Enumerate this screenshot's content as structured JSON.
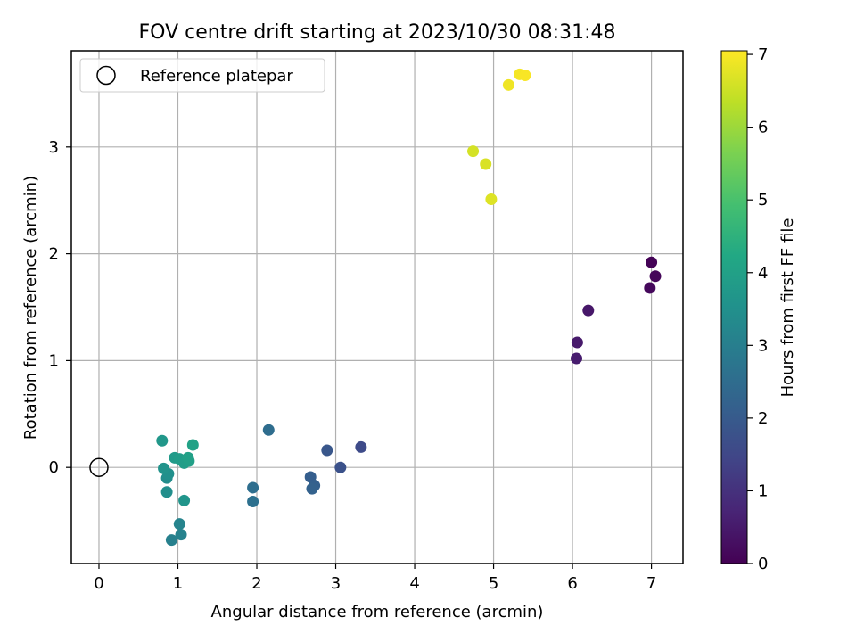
{
  "chart_data": {
    "type": "scatter",
    "title": "FOV centre drift starting at 2023/10/30 08:31:48",
    "xlabel": "Angular distance from reference (arcmin)",
    "ylabel": "Rotation from reference (arcmin)",
    "xlim": [
      -0.35,
      7.4
    ],
    "ylim": [
      -0.9,
      3.9
    ],
    "xticks": [
      0,
      1,
      2,
      3,
      4,
      5,
      6,
      7
    ],
    "yticks": [
      0,
      1,
      2,
      3
    ],
    "grid": true,
    "legend": {
      "placement": "top-left",
      "entries": [
        "Reference platepar"
      ]
    },
    "reference_point": {
      "label": "Reference platepar",
      "x": 0,
      "y": 0,
      "marker": "open-circle"
    },
    "colorbar": {
      "label": "Hours from first FF file",
      "colormap": "viridis",
      "range": [
        0,
        7.05
      ],
      "ticks": [
        0,
        1,
        2,
        3,
        4,
        5,
        6,
        7
      ]
    },
    "points": [
      {
        "x": 7.0,
        "y": 1.92,
        "hours": 0.05
      },
      {
        "x": 7.05,
        "y": 1.79,
        "hours": 0.1
      },
      {
        "x": 6.98,
        "y": 1.68,
        "hours": 0.15
      },
      {
        "x": 6.2,
        "y": 1.47,
        "hours": 0.45
      },
      {
        "x": 6.06,
        "y": 1.17,
        "hours": 0.5
      },
      {
        "x": 6.05,
        "y": 1.02,
        "hours": 0.55
      },
      {
        "x": 3.32,
        "y": 0.19,
        "hours": 1.6
      },
      {
        "x": 3.06,
        "y": 0.0,
        "hours": 1.75
      },
      {
        "x": 2.89,
        "y": 0.16,
        "hours": 1.9
      },
      {
        "x": 2.68,
        "y": -0.09,
        "hours": 2.1
      },
      {
        "x": 2.73,
        "y": -0.17,
        "hours": 2.15
      },
      {
        "x": 2.7,
        "y": -0.2,
        "hours": 2.2
      },
      {
        "x": 2.15,
        "y": 0.35,
        "hours": 2.5
      },
      {
        "x": 1.95,
        "y": -0.19,
        "hours": 2.55
      },
      {
        "x": 1.95,
        "y": -0.32,
        "hours": 2.6
      },
      {
        "x": 0.92,
        "y": -0.68,
        "hours": 3.05
      },
      {
        "x": 1.04,
        "y": -0.63,
        "hours": 3.1
      },
      {
        "x": 1.02,
        "y": -0.53,
        "hours": 3.15
      },
      {
        "x": 0.86,
        "y": -0.1,
        "hours": 3.4
      },
      {
        "x": 0.86,
        "y": -0.23,
        "hours": 3.45
      },
      {
        "x": 0.88,
        "y": -0.06,
        "hours": 3.5
      },
      {
        "x": 0.82,
        "y": -0.01,
        "hours": 3.6
      },
      {
        "x": 1.08,
        "y": -0.31,
        "hours": 3.65
      },
      {
        "x": 0.8,
        "y": 0.25,
        "hours": 3.7
      },
      {
        "x": 0.96,
        "y": 0.09,
        "hours": 3.8
      },
      {
        "x": 1.02,
        "y": 0.08,
        "hours": 3.85
      },
      {
        "x": 1.08,
        "y": 0.04,
        "hours": 3.9
      },
      {
        "x": 1.14,
        "y": 0.06,
        "hours": 3.95
      },
      {
        "x": 1.13,
        "y": 0.09,
        "hours": 4.0
      },
      {
        "x": 1.19,
        "y": 0.21,
        "hours": 4.05
      },
      {
        "x": 4.74,
        "y": 2.96,
        "hours": 6.6
      },
      {
        "x": 4.9,
        "y": 2.84,
        "hours": 6.65
      },
      {
        "x": 4.97,
        "y": 2.51,
        "hours": 6.7
      },
      {
        "x": 5.19,
        "y": 3.58,
        "hours": 6.9
      },
      {
        "x": 5.33,
        "y": 3.68,
        "hours": 6.95
      },
      {
        "x": 5.4,
        "y": 3.67,
        "hours": 7.0
      }
    ]
  }
}
